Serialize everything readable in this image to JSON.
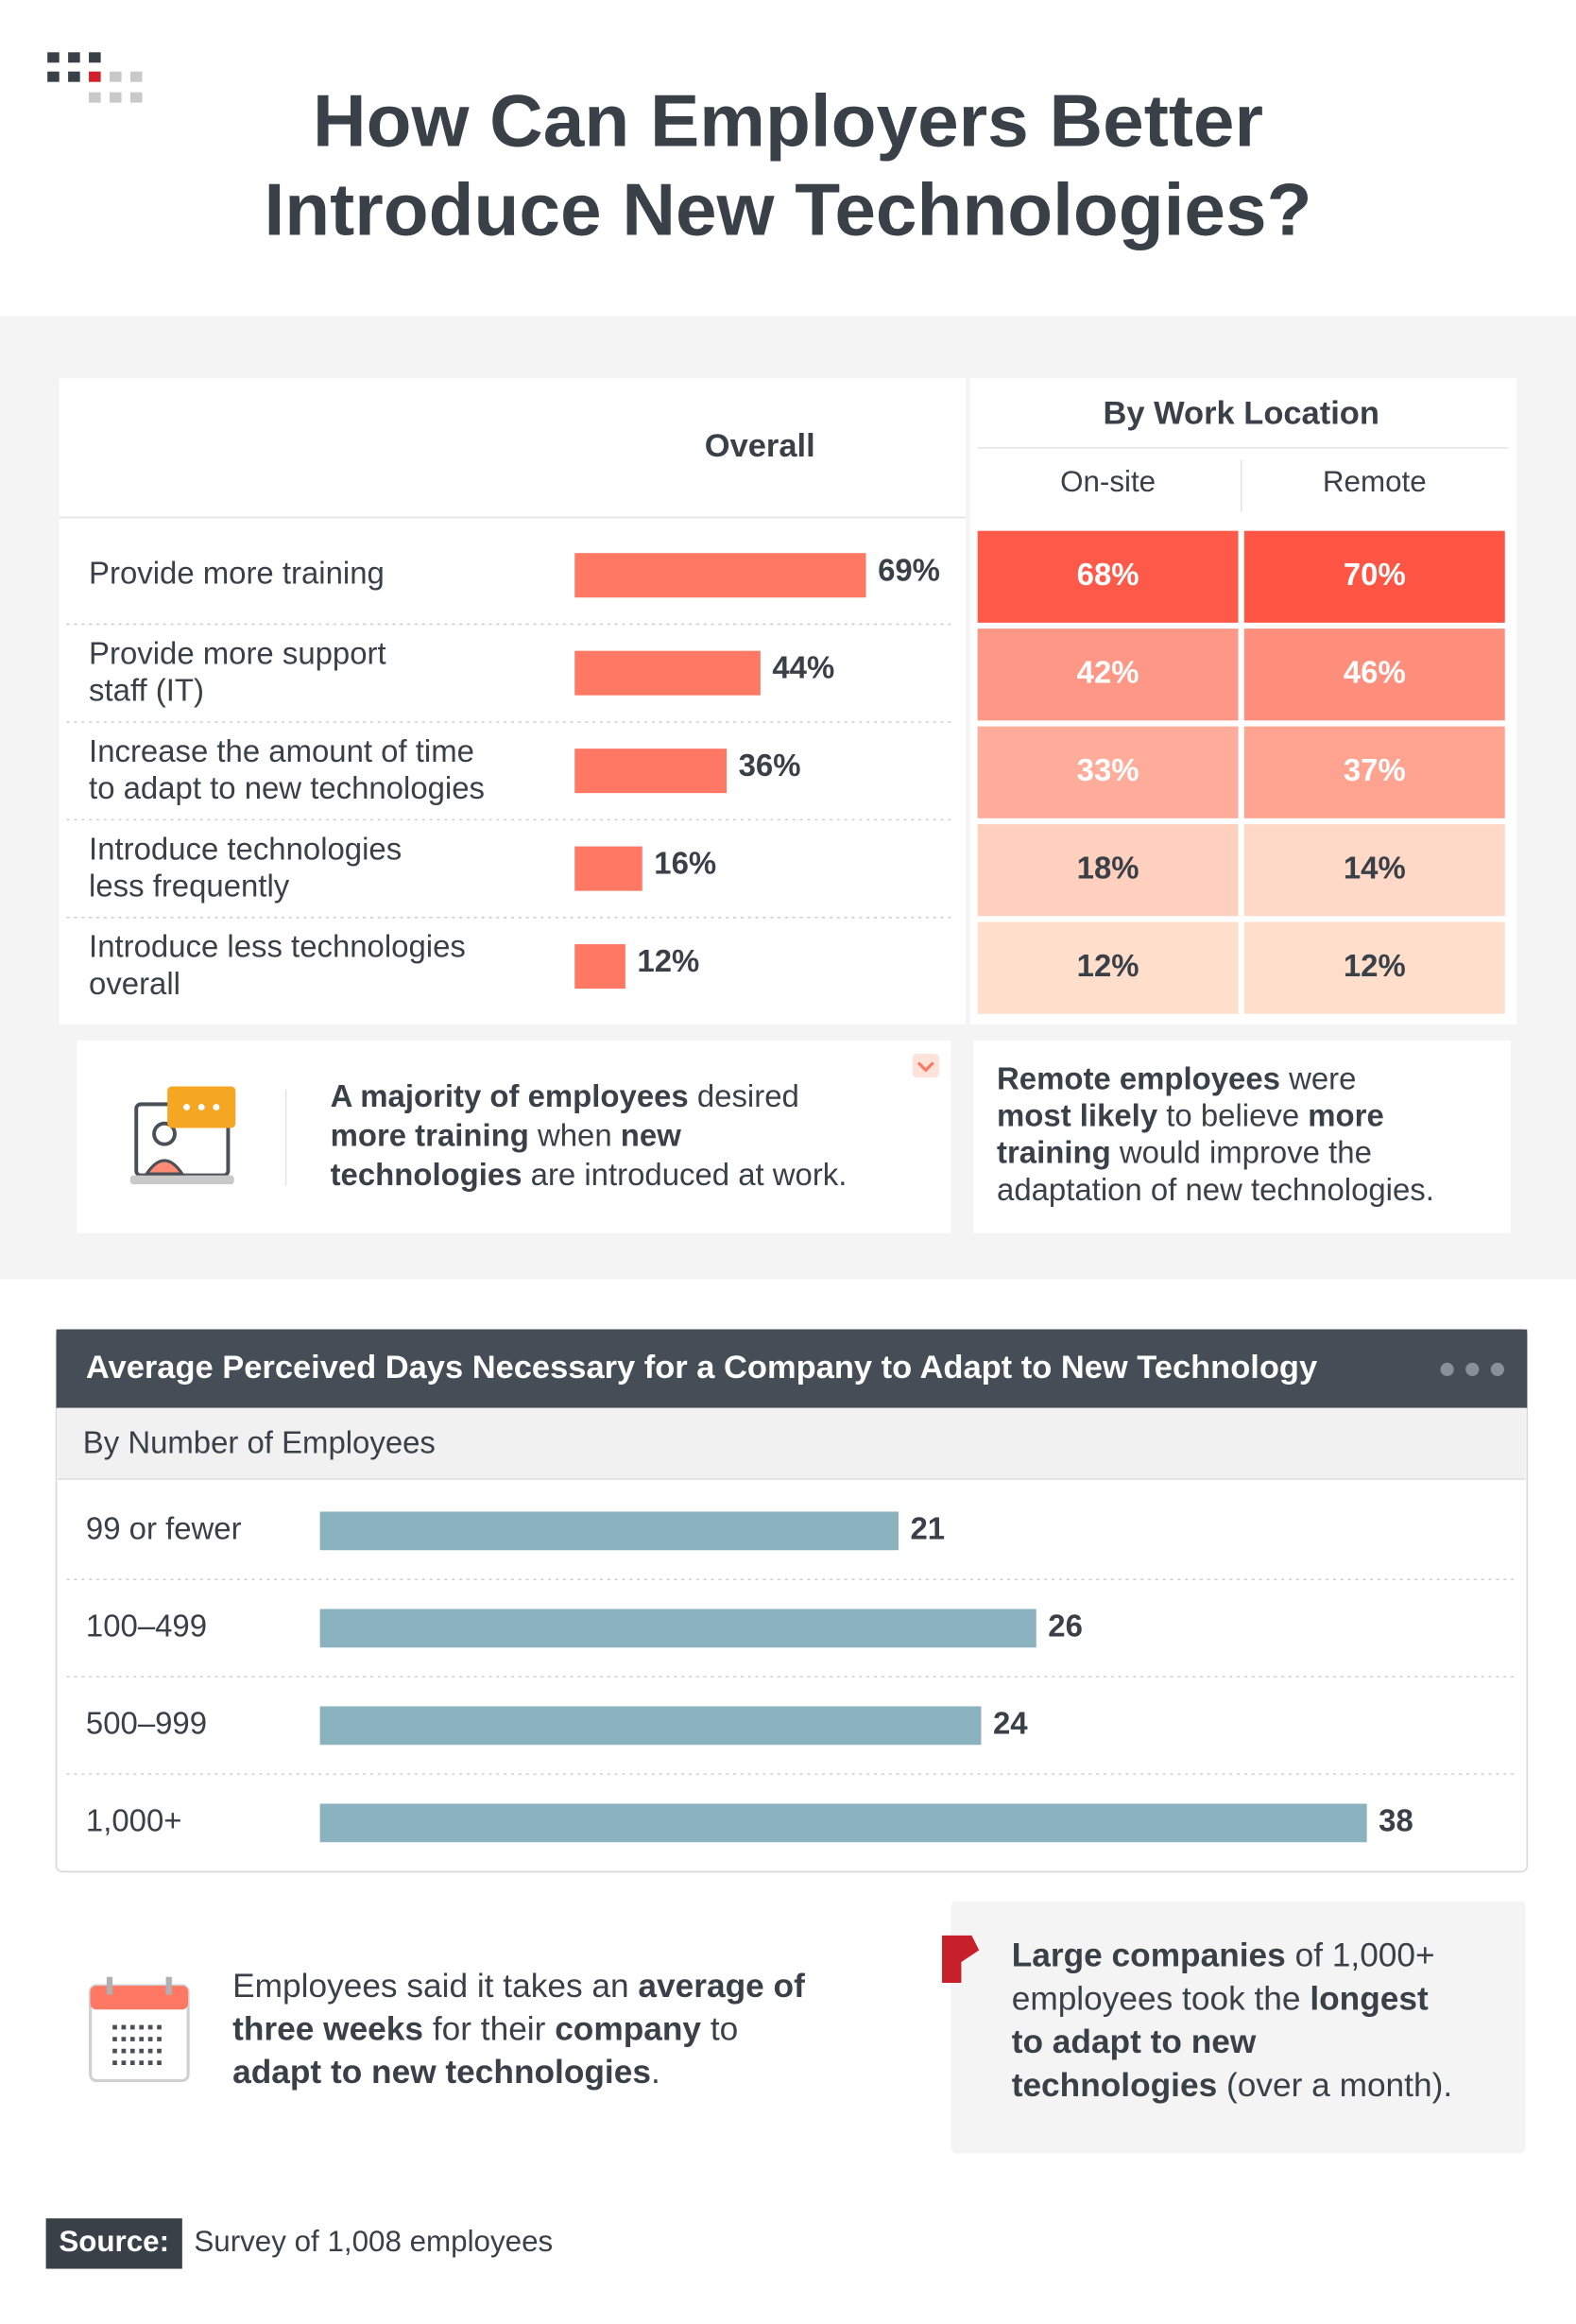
{
  "header": {
    "title": "How Can Employers Better\nIntroduce New Technologies?"
  },
  "chart_data": [
    {
      "type": "bar",
      "title": "Overall",
      "categories": [
        "Provide more training",
        "Provide more support\nstaff (IT)",
        "Increase the amount of time\nto adapt to new technologies",
        "Introduce technologies\nless frequently",
        "Introduce less technologies\noverall"
      ],
      "values": [
        69,
        44,
        36,
        16,
        12
      ],
      "value_labels": [
        "69%",
        "44%",
        "36%",
        "16%",
        "12%"
      ],
      "color": "#ff7863"
    },
    {
      "type": "heatmap",
      "title": "By Work Location",
      "columns": [
        "On-site",
        "Remote"
      ],
      "values": [
        [
          68,
          70
        ],
        [
          42,
          46
        ],
        [
          33,
          37
        ],
        [
          18,
          14
        ],
        [
          12,
          12
        ]
      ],
      "value_labels": [
        [
          "68%",
          "70%"
        ],
        [
          "42%",
          "46%"
        ],
        [
          "33%",
          "37%"
        ],
        [
          "18%",
          "14%"
        ],
        [
          "12%",
          "12%"
        ]
      ]
    },
    {
      "type": "bar",
      "title": "Average Perceived Days Necessary for a Company to Adapt to New Technology",
      "subtitle": "By Number of Employees",
      "categories": [
        "99 or fewer",
        "100–499",
        "500–999",
        "1,000+"
      ],
      "values": [
        21,
        26,
        24,
        38
      ],
      "color": "#8ab3bf"
    }
  ],
  "callouts": [
    {
      "lines": [
        [
          {
            "text": "A majority of employees",
            "bold": true
          },
          {
            "text": " desired",
            "bold": false
          }
        ],
        [
          {
            "text": "more training",
            "bold": true
          },
          {
            "text": " when ",
            "bold": false
          },
          {
            "text": "new",
            "bold": true
          }
        ],
        [
          {
            "text": "technologies",
            "bold": true
          },
          {
            "text": " are introduced at work.",
            "bold": false
          }
        ]
      ]
    },
    {
      "lines": [
        [
          {
            "text": "Remote employees",
            "bold": true
          },
          {
            "text": " were",
            "bold": false
          }
        ],
        [
          {
            "text": "most likely",
            "bold": true
          },
          {
            "text": " to believe ",
            "bold": false
          },
          {
            "text": "more",
            "bold": true
          }
        ],
        [
          {
            "text": "training",
            "bold": true
          },
          {
            "text": " would improve the",
            "bold": false
          }
        ],
        [
          {
            "text": "adaptation of new technologies.",
            "bold": false
          }
        ]
      ]
    },
    {
      "lines": [
        [
          {
            "text": "Employees said it takes an ",
            "bold": false
          },
          {
            "text": "average of",
            "bold": true
          }
        ],
        [
          {
            "text": "three weeks",
            "bold": true
          },
          {
            "text": " for their ",
            "bold": false
          },
          {
            "text": "company",
            "bold": true
          },
          {
            "text": " to",
            "bold": false
          }
        ],
        [
          {
            "text": "adapt to new technologies",
            "bold": true
          },
          {
            "text": ".",
            "bold": false
          }
        ]
      ]
    },
    {
      "lines": [
        [
          {
            "text": "Large companies",
            "bold": true
          },
          {
            "text": " of 1,000+",
            "bold": false
          }
        ],
        [
          {
            "text": "employees took the ",
            "bold": false
          },
          {
            "text": "longest",
            "bold": true
          }
        ],
        [
          {
            "text": "to adapt to new",
            "bold": true
          }
        ],
        [
          {
            "text": "technologies",
            "bold": true
          },
          {
            "text": " (over a month).",
            "bold": false
          }
        ]
      ]
    }
  ],
  "source": {
    "label": "Source:",
    "text": "Survey of 1,008 employees"
  }
}
